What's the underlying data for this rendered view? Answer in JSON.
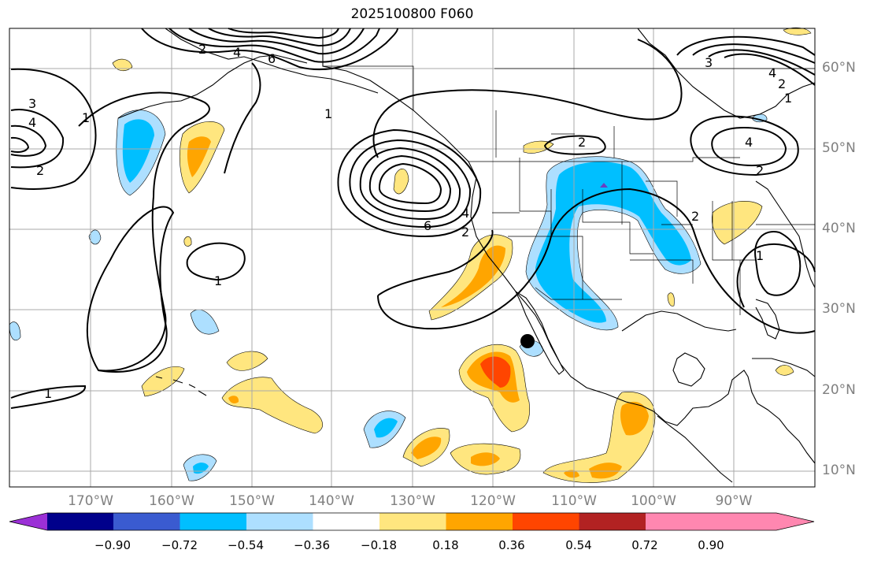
{
  "title": "2025100800 F060",
  "latitude_labels": [
    "60°N",
    "50°N",
    "40°N",
    "30°N",
    "20°N",
    "10°N"
  ],
  "longitude_labels": [
    "170°W",
    "160°W",
    "150°W",
    "140°W",
    "130°W",
    "120°W",
    "110°W",
    "100°W",
    "90°W"
  ],
  "contour_labels": [
    "3",
    "4",
    "2",
    "1",
    "6",
    "4",
    "2",
    "1",
    "2",
    "2",
    "6",
    "4",
    "2",
    "4",
    "2",
    "1",
    "3",
    "4",
    "2",
    "1",
    "1",
    "1"
  ],
  "marker": {
    "name": "station-point",
    "lat": 26,
    "lon": -116
  },
  "colorbar": {
    "tick_labels": [
      "−0.90",
      "−0.72",
      "−0.54",
      "−0.36",
      "−0.18",
      "0.18",
      "0.36",
      "0.54",
      "0.72",
      "0.90"
    ],
    "colors": [
      "#9b30d6",
      "#00008b",
      "#3a5bd0",
      "#00bfff",
      "#addfff",
      "#ffffff",
      "#ffe67f",
      "#ffa500",
      "#ff4500",
      "#b22222",
      "#ff87b0"
    ],
    "extend": "both"
  },
  "fill_colors": {
    "light_blue": "#addfff",
    "blue": "#00bfff",
    "purple": "#6a3fc1",
    "light_yellow": "#ffe67f",
    "orange": "#ffa500",
    "red_orange": "#ff4500"
  }
}
